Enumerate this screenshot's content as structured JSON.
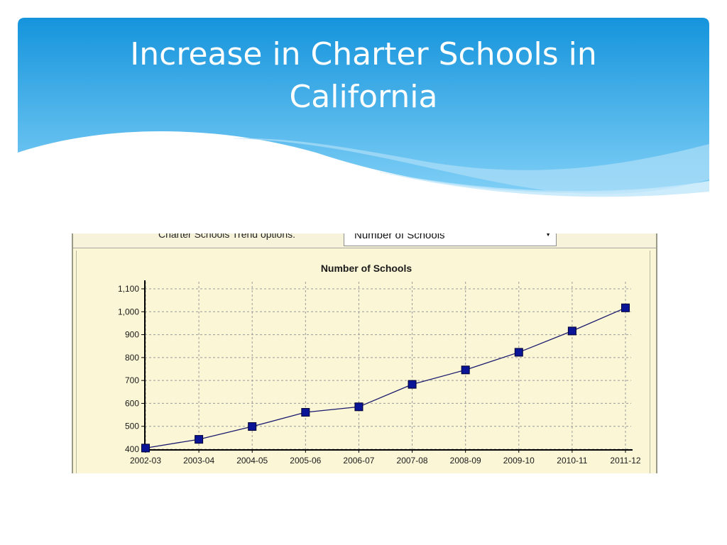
{
  "slide": {
    "title": "Increase in Charter Schools in\nCalifornia",
    "colors": {
      "header_top": "#1594dc",
      "header_bottom": "#7fcff6",
      "wave": "#a9dcf7"
    }
  },
  "options": {
    "label": "Charter Schools Trend options:",
    "selected": "Number of Schools"
  },
  "chart_data": {
    "type": "line",
    "title": "Number of Schools",
    "categories": [
      "2002-03",
      "2003-04",
      "2004-05",
      "2005-06",
      "2006-07",
      "2007-08",
      "2008-09",
      "2009-10",
      "2010-11",
      "2011-12"
    ],
    "series": [
      {
        "values": [
          405,
          443,
          499,
          561,
          585,
          683,
          746,
          823,
          916,
          1017
        ]
      }
    ],
    "y_ticks": [
      "400",
      "500",
      "600",
      "700",
      "800",
      "900",
      "1,000",
      "1,100"
    ],
    "ylim": [
      400,
      1100
    ],
    "grid": true,
    "colors": {
      "marker": "#0a1496",
      "line": "#1a1a6e",
      "grid": "#9a9a9a",
      "background": "#fbf6d6"
    }
  }
}
